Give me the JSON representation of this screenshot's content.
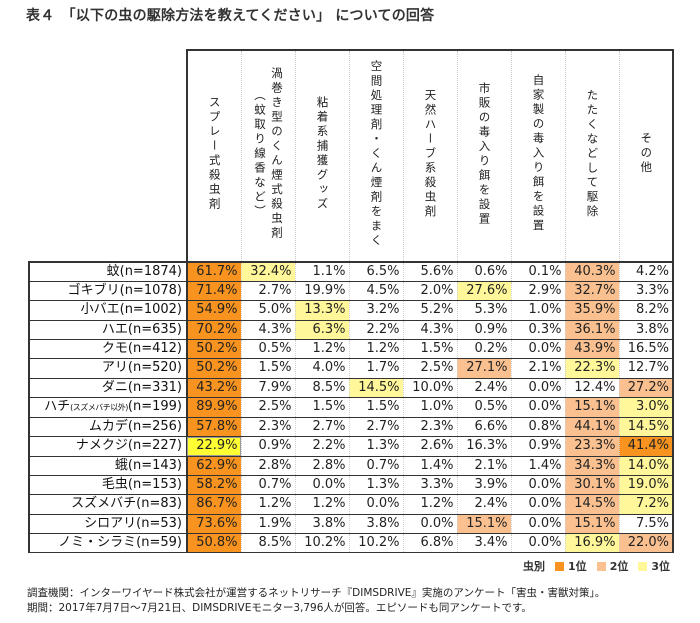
{
  "title": "表４　「以下の虫の駆除方法を教えてください」 についての回答",
  "columns": [
    "スプレー式殺虫剤",
    "渦巻き型のくん煙式殺虫剤（蚊取り線香など）",
    "粘着系捕獲グッズ",
    "空間処理剤・くん煙剤をまく",
    "天然ハーブ系殺虫剤",
    "市販の毒入り餌を設置",
    "自家製の毒入り餌を設置",
    "たたくなどして駆除",
    "その他"
  ],
  "rows": [
    {
      "label": "蚊(n=1874)",
      "values": [
        "61.7%",
        "32.4%",
        "1.1%",
        "6.5%",
        "5.6%",
        "0.6%",
        "0.1%",
        "40.3%",
        "4.2%"
      ],
      "ranks": [
        "r1",
        "r3",
        "",
        "",
        "",
        "",
        "",
        "r2",
        ""
      ]
    },
    {
      "label": "ゴキブリ(n=1078)",
      "values": [
        "71.4%",
        "2.7%",
        "19.9%",
        "4.5%",
        "2.0%",
        "27.6%",
        "2.9%",
        "32.7%",
        "3.3%"
      ],
      "ranks": [
        "r1",
        "",
        "",
        "",
        "",
        "r3",
        "",
        "r2",
        ""
      ]
    },
    {
      "label": "小バエ(n=1002)",
      "values": [
        "54.9%",
        "5.0%",
        "13.3%",
        "3.2%",
        "5.2%",
        "5.3%",
        "1.0%",
        "35.9%",
        "8.2%"
      ],
      "ranks": [
        "r1",
        "",
        "r3",
        "",
        "",
        "",
        "",
        "r2",
        ""
      ]
    },
    {
      "label": "ハエ(n=635)",
      "values": [
        "70.2%",
        "4.3%",
        "6.3%",
        "2.2%",
        "4.3%",
        "0.9%",
        "0.3%",
        "36.1%",
        "3.8%"
      ],
      "ranks": [
        "r1",
        "",
        "r3",
        "",
        "",
        "",
        "",
        "r2",
        ""
      ]
    },
    {
      "label": "クモ(n=412)",
      "values": [
        "50.2%",
        "0.5%",
        "1.2%",
        "1.2%",
        "1.5%",
        "0.2%",
        "0.0%",
        "43.9%",
        "16.5%"
      ],
      "ranks": [
        "r1",
        "",
        "",
        "",
        "",
        "",
        "",
        "r2",
        ""
      ]
    },
    {
      "label": "アリ(n=520)",
      "values": [
        "50.2%",
        "1.5%",
        "4.0%",
        "1.7%",
        "2.5%",
        "27.1%",
        "2.1%",
        "22.3%",
        "12.7%"
      ],
      "ranks": [
        "r1",
        "",
        "",
        "",
        "",
        "r2",
        "",
        "r3",
        ""
      ]
    },
    {
      "label": "ダニ(n=331)",
      "values": [
        "43.2%",
        "7.9%",
        "8.5%",
        "14.5%",
        "10.0%",
        "2.4%",
        "0.0%",
        "12.4%",
        "27.2%"
      ],
      "ranks": [
        "r1",
        "",
        "",
        "r3",
        "",
        "",
        "",
        "",
        "r2"
      ]
    },
    {
      "label": "ハチ",
      "label_small": "(スズメバチ以外)",
      "label_n": "(n=199)",
      "values": [
        "89.9%",
        "2.5%",
        "1.5%",
        "1.5%",
        "1.0%",
        "0.5%",
        "0.0%",
        "15.1%",
        "3.0%"
      ],
      "ranks": [
        "r1",
        "",
        "",
        "",
        "",
        "",
        "",
        "r2",
        "r3"
      ]
    },
    {
      "label": "ムカデ(n=256)",
      "values": [
        "57.8%",
        "2.3%",
        "2.7%",
        "2.7%",
        "2.3%",
        "6.6%",
        "0.8%",
        "44.1%",
        "14.5%"
      ],
      "ranks": [
        "r1",
        "",
        "",
        "",
        "",
        "",
        "",
        "r2",
        "r3"
      ]
    },
    {
      "label": "ナメクジ(n=227)",
      "values": [
        "22.9%",
        "0.9%",
        "2.2%",
        "1.3%",
        "2.6%",
        "16.3%",
        "0.9%",
        "23.3%",
        "41.4%"
      ],
      "ranks": [
        "r3b",
        "",
        "",
        "",
        "",
        "",
        "",
        "r2",
        "r1"
      ]
    },
    {
      "label": "蛾(n=143)",
      "values": [
        "62.9%",
        "2.8%",
        "2.8%",
        "0.7%",
        "1.4%",
        "2.1%",
        "1.4%",
        "34.3%",
        "14.0%"
      ],
      "ranks": [
        "r1",
        "",
        "",
        "",
        "",
        "",
        "",
        "r2",
        "r3"
      ]
    },
    {
      "label": "毛虫(n=153)",
      "values": [
        "58.2%",
        "0.7%",
        "0.0%",
        "1.3%",
        "3.3%",
        "3.9%",
        "0.0%",
        "30.1%",
        "19.0%"
      ],
      "ranks": [
        "r1",
        "",
        "",
        "",
        "",
        "",
        "",
        "r2",
        "r3"
      ]
    },
    {
      "label": "スズメバチ(n=83)",
      "values": [
        "86.7%",
        "1.2%",
        "1.2%",
        "0.0%",
        "1.2%",
        "2.4%",
        "0.0%",
        "14.5%",
        "7.2%"
      ],
      "ranks": [
        "r1",
        "",
        "",
        "",
        "",
        "",
        "",
        "r2",
        "r3"
      ]
    },
    {
      "label": "シロアリ(n=53)",
      "values": [
        "73.6%",
        "1.9%",
        "3.8%",
        "3.8%",
        "0.0%",
        "15.1%",
        "0.0%",
        "15.1%",
        "7.5%"
      ],
      "ranks": [
        "r1",
        "",
        "",
        "",
        "",
        "r2",
        "",
        "r2",
        ""
      ]
    },
    {
      "label": "ノミ・シラミ(n=59)",
      "values": [
        "50.8%",
        "8.5%",
        "10.2%",
        "10.2%",
        "6.8%",
        "3.4%",
        "0.0%",
        "16.9%",
        "22.0%"
      ],
      "ranks": [
        "r1",
        "",
        "",
        "",
        "",
        "",
        "",
        "r3",
        "r2"
      ]
    }
  ],
  "legend": {
    "title": "虫別",
    "items": [
      {
        "label": "1位",
        "color": "#F7931E"
      },
      {
        "label": "2位",
        "color": "#FAC090"
      },
      {
        "label": "3位",
        "color": "#FFF799"
      }
    ]
  },
  "footer": {
    "line1": "調査機関：インターワイヤード株式会社が運営するネットリサーチ『DIMSDRIVE』実施のアンケート「害虫・害獣対策」。",
    "line2": "期間：2017年7月7日～7月21日、DIMSDRIVEモニター3,796人が回答。エピソードも同アンケートです。"
  },
  "colors": {
    "rank1": "#F7931E",
    "rank2": "#FAC090",
    "rank3": "#FFF799",
    "rank3_bright": "#FFFF33",
    "border": "#333333"
  },
  "chart_data": {
    "type": "table",
    "title": "表４　「以下の虫の駆除方法を教えてください」 についての回答",
    "columns": [
      "スプレー式殺虫剤",
      "渦巻き型のくん煙式殺虫剤（蚊取り線香など）",
      "粘着系捕獲グッズ",
      "空間処理剤・くん煙剤をまく",
      "天然ハーブ系殺虫剤",
      "市販の毒入り餌を設置",
      "自家製の毒入り餌を設置",
      "たたくなどして駆除",
      "その他"
    ],
    "categories": [
      "蚊(n=1874)",
      "ゴキブリ(n=1078)",
      "小バエ(n=1002)",
      "ハエ(n=635)",
      "クモ(n=412)",
      "アリ(n=520)",
      "ダニ(n=331)",
      "ハチ(スズメバチ以外)(n=199)",
      "ムカデ(n=256)",
      "ナメクジ(n=227)",
      "蛾(n=143)",
      "毛虫(n=153)",
      "スズメバチ(n=83)",
      "シロアリ(n=53)",
      "ノミ・シラミ(n=59)"
    ],
    "values": [
      [
        61.7,
        32.4,
        1.1,
        6.5,
        5.6,
        0.6,
        0.1,
        40.3,
        4.2
      ],
      [
        71.4,
        2.7,
        19.9,
        4.5,
        2.0,
        27.6,
        2.9,
        32.7,
        3.3
      ],
      [
        54.9,
        5.0,
        13.3,
        3.2,
        5.2,
        5.3,
        1.0,
        35.9,
        8.2
      ],
      [
        70.2,
        4.3,
        6.3,
        2.2,
        4.3,
        0.9,
        0.3,
        36.1,
        3.8
      ],
      [
        50.2,
        0.5,
        1.2,
        1.2,
        1.5,
        0.2,
        0.0,
        43.9,
        16.5
      ],
      [
        50.2,
        1.5,
        4.0,
        1.7,
        2.5,
        27.1,
        2.1,
        22.3,
        12.7
      ],
      [
        43.2,
        7.9,
        8.5,
        14.5,
        10.0,
        2.4,
        0.0,
        12.4,
        27.2
      ],
      [
        89.9,
        2.5,
        1.5,
        1.5,
        1.0,
        0.5,
        0.0,
        15.1,
        3.0
      ],
      [
        57.8,
        2.3,
        2.7,
        2.7,
        2.3,
        6.6,
        0.8,
        44.1,
        14.5
      ],
      [
        22.9,
        0.9,
        2.2,
        1.3,
        2.6,
        16.3,
        0.9,
        23.3,
        41.4
      ],
      [
        62.9,
        2.8,
        2.8,
        0.7,
        1.4,
        2.1,
        1.4,
        34.3,
        14.0
      ],
      [
        58.2,
        0.7,
        0.0,
        1.3,
        3.3,
        3.9,
        0.0,
        30.1,
        19.0
      ],
      [
        86.7,
        1.2,
        1.2,
        0.0,
        1.2,
        2.4,
        0.0,
        14.5,
        7.2
      ],
      [
        73.6,
        1.9,
        3.8,
        3.8,
        0.0,
        15.1,
        0.0,
        15.1,
        7.5
      ],
      [
        50.8,
        8.5,
        10.2,
        10.2,
        6.8,
        3.4,
        0.0,
        16.9,
        22.0
      ]
    ],
    "unit": "%",
    "legend": [
      "1位",
      "2位",
      "3位"
    ],
    "legend_title": "虫別",
    "notes": [
      "調査機関：インターワイヤード株式会社が運営するネットリサーチ『DIMSDRIVE』実施のアンケート「害虫・害獣対策」。",
      "期間：2017年7月7日～7月21日、DIMSDRIVEモニター3,796人が回答。エピソードも同アンケートです。"
    ]
  }
}
